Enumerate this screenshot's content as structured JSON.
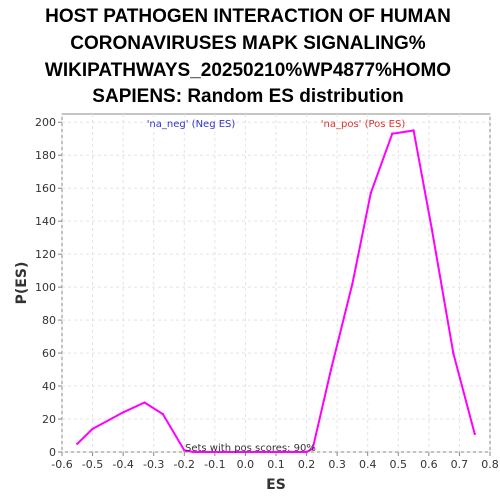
{
  "chart_data": {
    "type": "line",
    "title_lines": [
      "HOST PATHOGEN INTERACTION OF HUMAN",
      "CORONAVIRUSES MAPK SIGNALING%",
      "WIKIPATHWAYS_20250210%WP4877%HOMO",
      "SAPIENS: Random ES distribution"
    ],
    "xlabel": "ES",
    "ylabel": "P(ES)",
    "xlim": [
      -0.6,
      0.8
    ],
    "ylim": [
      0,
      205
    ],
    "x_ticks": [
      "-0.6",
      "-0.5",
      "-0.4",
      "-0.3",
      "-0.2",
      "-0.1",
      "0.0",
      "0.1",
      "0.2",
      "0.3",
      "0.4",
      "0.5",
      "0.6",
      "0.7",
      "0.8"
    ],
    "y_ticks": [
      "0",
      "20",
      "40",
      "60",
      "80",
      "100",
      "120",
      "140",
      "160",
      "180",
      "200"
    ],
    "grid": true,
    "series": [
      {
        "color": "#ff00ff",
        "x": [
          -0.55,
          -0.5,
          -0.4,
          -0.33,
          -0.27,
          -0.2,
          -0.17,
          0.0,
          0.15,
          0.2,
          0.22,
          0.28,
          0.35,
          0.41,
          0.48,
          0.55,
          0.61,
          0.68,
          0.75
        ],
        "y": [
          5,
          14,
          24,
          30,
          23,
          1,
          0,
          0,
          0,
          0,
          2,
          50,
          102,
          157,
          193,
          195,
          135,
          60,
          11
        ]
      }
    ],
    "annotations": {
      "neg": {
        "text": "'na_neg' (Neg ES)",
        "color": "#3333cc"
      },
      "pos": {
        "text": "'na_pos' (Pos ES)",
        "color": "#dd3333"
      },
      "bottom": {
        "text": "Sets with pos scores: 90%",
        "color": "#333333"
      }
    }
  }
}
